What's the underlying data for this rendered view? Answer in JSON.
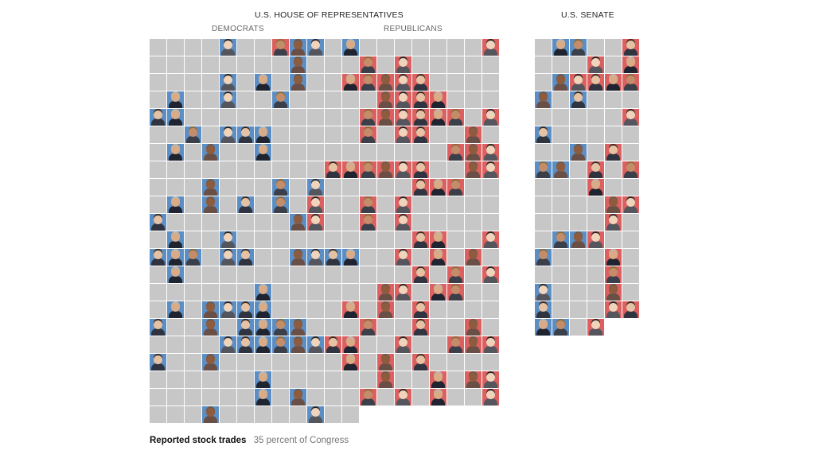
{
  "house": {
    "title": "U.S. HOUSE OF REPRESENTATIVES",
    "democrats_label": "DEMOCRATS",
    "republicans_label": "REPUBLICANS"
  },
  "senate": {
    "title": "U.S. SENATE"
  },
  "caption": {
    "label": "Reported stock trades",
    "value": "35 percent of Congress"
  },
  "colors": {
    "democrat": "#5b8ec4",
    "republican": "#dd6060",
    "no_trades": "#c7c7c7"
  },
  "legend_stats": {
    "share_with_trades_percent": 35
  }
}
